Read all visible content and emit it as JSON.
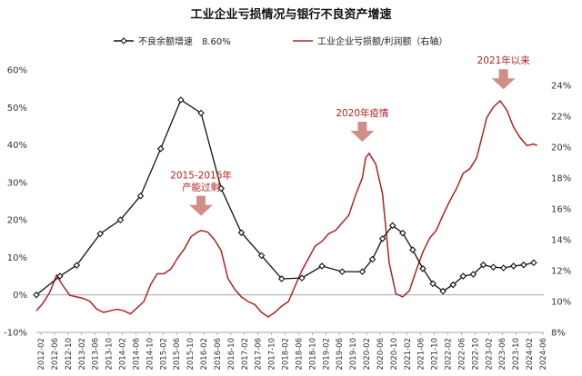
{
  "chart_data": {
    "type": "line",
    "title": "工业企业亏损情况与银行不良资产增速",
    "legend_position": "top",
    "colors": {
      "series_left": "#111111",
      "series_right": "#b22222",
      "arrow": "#c97a73",
      "annotation_text": "#b22222"
    },
    "y_left": {
      "ylim": [
        -10,
        60
      ],
      "ticks": [
        "-10%",
        "0%",
        "10%",
        "20%",
        "30%",
        "40%",
        "50%",
        "60%"
      ]
    },
    "y_right": {
      "ylim": [
        8,
        25
      ],
      "ticks": [
        "8%",
        "10%",
        "12%",
        "14%",
        "16%",
        "18%",
        "20%",
        "22%",
        "24%"
      ]
    },
    "x_ticks": [
      "2012-02",
      "2012-06",
      "2012-10",
      "2013-02",
      "2013-06",
      "2013-10",
      "2014-02",
      "2014-06",
      "2014-10",
      "2015-02",
      "2015-06",
      "2015-10",
      "2016-02",
      "2016-06",
      "2016-10",
      "2017-02",
      "2017-06",
      "2017-10",
      "2018-02",
      "2018-06",
      "2018-10",
      "2019-02",
      "2019-06",
      "2019-10",
      "2020-02",
      "2020-06",
      "2020-10",
      "2021-02",
      "2021-06",
      "2021-10",
      "2022-02",
      "2022-06",
      "2022-10",
      "2023-02",
      "2023-06",
      "2023-10",
      "2024-02",
      "2024-06"
    ],
    "series": [
      {
        "name": "不良余额增速",
        "axis": "left",
        "legend_value": "8.60%",
        "x": [
          2011.917,
          2012.5,
          2012.917,
          2013.5,
          2014.0,
          2014.5,
          2015.0,
          2015.5,
          2016.0,
          2016.5,
          2017.0,
          2017.5,
          2018.0,
          2018.5,
          2019.0,
          2019.5,
          2020.0,
          2020.25,
          2020.5,
          2020.75,
          2021.0,
          2021.25,
          2021.5,
          2021.75,
          2022.0,
          2022.25,
          2022.5,
          2022.75,
          2023.0,
          2023.25,
          2023.5,
          2023.75,
          2024.0,
          2024.25
        ],
        "values": [
          0,
          5,
          7.9,
          16.3,
          20,
          26.4,
          39,
          52,
          48.5,
          28.4,
          16.6,
          10.5,
          4.3,
          4.5,
          7.7,
          6.2,
          6.2,
          9.5,
          15,
          18.5,
          16.5,
          12,
          7,
          3,
          1,
          2.7,
          5,
          5.5,
          8,
          7.4,
          7.2,
          7.7,
          8,
          8.6
        ]
      },
      {
        "name": "工业企业亏损额/利润额（右轴）",
        "axis": "right",
        "x": [
          2011.917,
          2012.083,
          2012.25,
          2012.417,
          2012.583,
          2012.75,
          2012.917,
          2013.083,
          2013.25,
          2013.417,
          2013.583,
          2013.75,
          2013.917,
          2014.083,
          2014.25,
          2014.417,
          2014.583,
          2014.75,
          2014.917,
          2015.083,
          2015.25,
          2015.417,
          2015.583,
          2015.75,
          2015.917,
          2016.0,
          2016.167,
          2016.333,
          2016.5,
          2016.667,
          2016.833,
          2017.0,
          2017.167,
          2017.333,
          2017.5,
          2017.667,
          2017.833,
          2018.0,
          2018.167,
          2018.333,
          2018.5,
          2018.667,
          2018.833,
          2019.0,
          2019.167,
          2019.333,
          2019.5,
          2019.667,
          2019.833,
          2020.0,
          2020.083,
          2020.167,
          2020.333,
          2020.5,
          2020.667,
          2020.833,
          2021.0,
          2021.167,
          2021.333,
          2021.5,
          2021.667,
          2021.833,
          2022.0,
          2022.167,
          2022.333,
          2022.5,
          2022.667,
          2022.833,
          2023.0,
          2023.083,
          2023.25,
          2023.417,
          2023.583,
          2023.75,
          2023.917,
          2024.083,
          2024.25,
          2024.333
        ],
        "values": [
          9.4,
          9.9,
          10.6,
          11.7,
          11.0,
          10.4,
          10.3,
          10.2,
          10.0,
          9.5,
          9.3,
          9.4,
          9.5,
          9.4,
          9.2,
          9.6,
          10.0,
          11.1,
          11.8,
          11.8,
          12.1,
          12.8,
          13.4,
          14.2,
          14.5,
          14.6,
          14.5,
          14.0,
          13.3,
          11.5,
          10.8,
          10.3,
          10.0,
          9.8,
          9.3,
          9.0,
          9.3,
          9.7,
          10.0,
          11.0,
          12.0,
          12.8,
          13.6,
          13.9,
          14.4,
          14.6,
          15.1,
          15.6,
          16.9,
          18.0,
          19.3,
          19.6,
          18.9,
          17.0,
          12.5,
          10.5,
          10.3,
          10.7,
          12.0,
          13.2,
          14.1,
          14.6,
          15.6,
          16.5,
          17.3,
          18.3,
          18.6,
          19.3,
          21.0,
          21.9,
          22.6,
          23.0,
          22.4,
          21.3,
          20.6,
          20.1,
          20.2,
          20.1
        ]
      }
    ],
    "annotations": [
      {
        "lines": [
          "2015-2016年",
          "产能过剩"
        ],
        "x": 2016.0,
        "y_right": 15.2
      },
      {
        "lines": [
          "2020年疫情"
        ],
        "x": 2020.0,
        "y_right": 20.0
      },
      {
        "lines": [
          "2021年以来"
        ],
        "x": 2023.5,
        "y_right": 23.4
      }
    ]
  }
}
